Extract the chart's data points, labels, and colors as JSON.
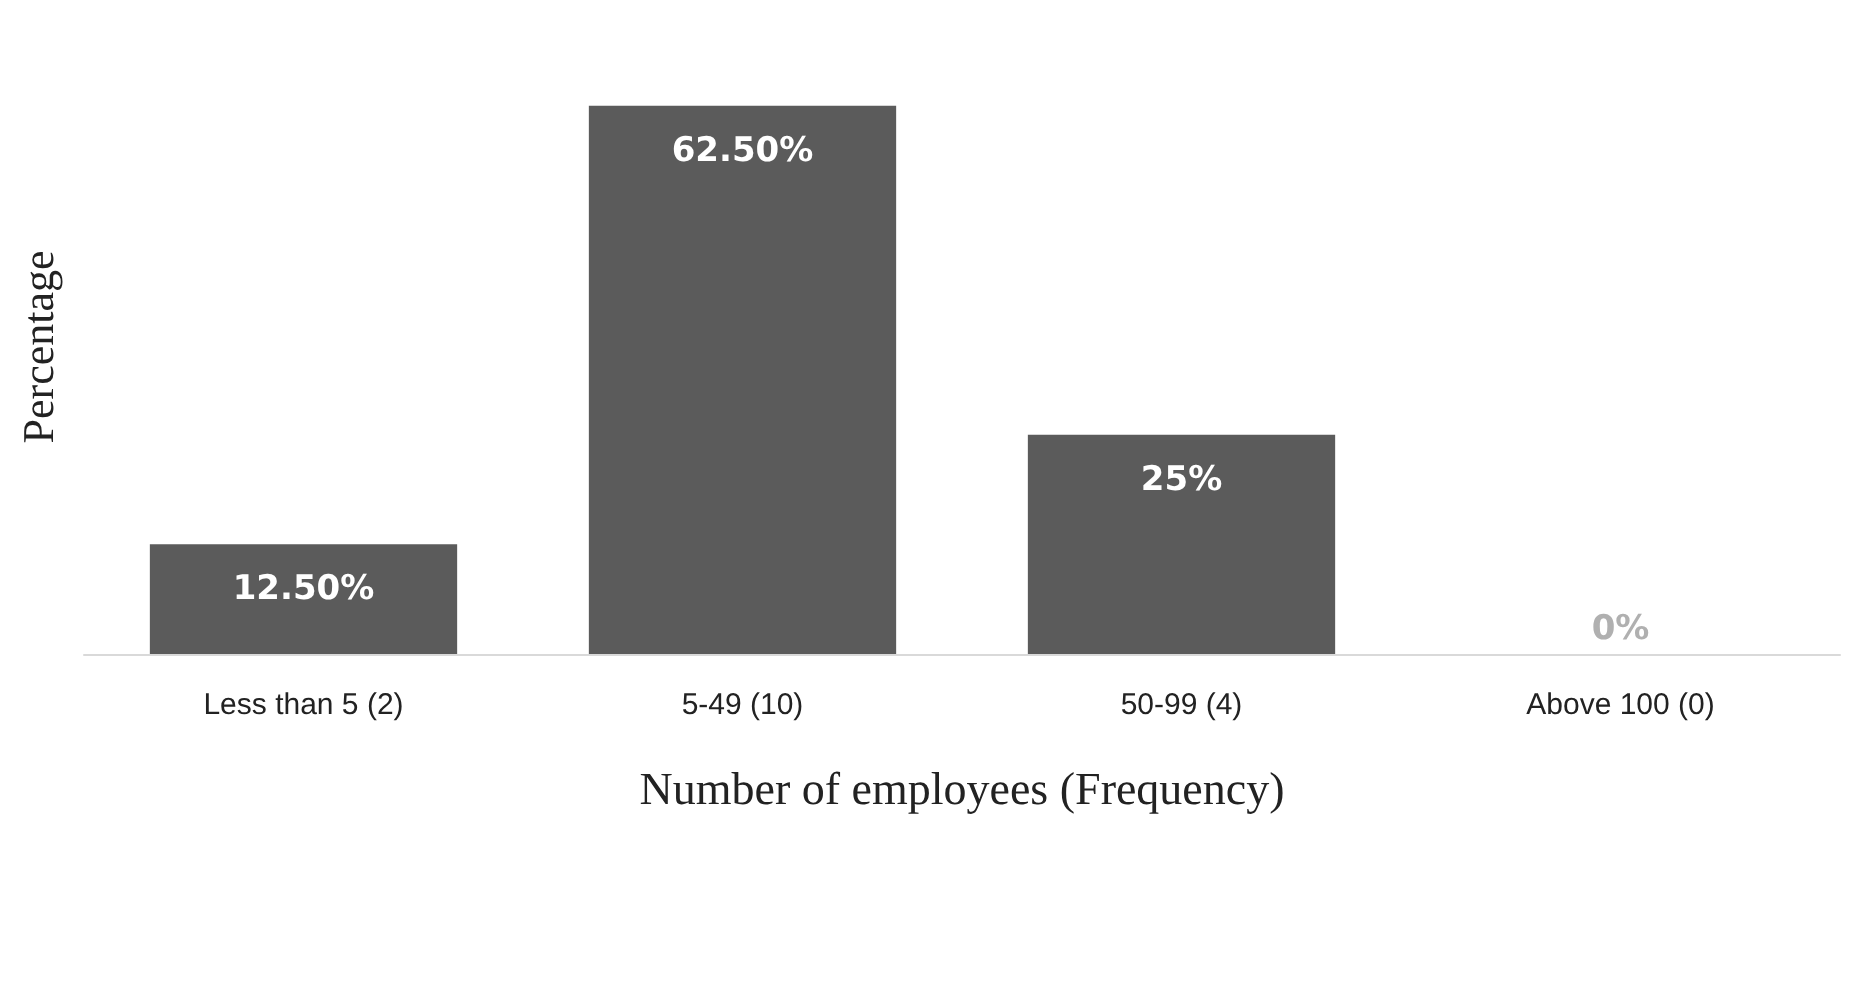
{
  "chart_data": {
    "type": "bar",
    "xlabel": "Number of employees (Frequency)",
    "ylabel": "Percentage",
    "categories": [
      "Less than 5 (2)",
      "5-49 (10)",
      "50-99 (4)",
      "Above 100 (0)"
    ],
    "values": [
      12.5,
      62.5,
      25,
      0
    ],
    "value_labels": [
      "12.50%",
      "62.50%",
      "25%",
      "0%"
    ],
    "color": "#5b5b5b"
  }
}
